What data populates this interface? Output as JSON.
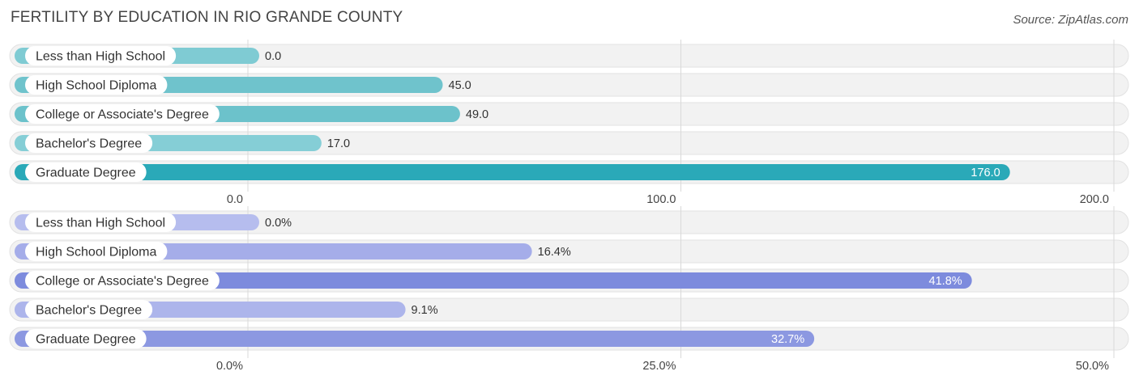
{
  "title": "FERTILITY BY EDUCATION IN RIO GRANDE COUNTY",
  "source": "Source: ZipAtlas.com",
  "chart_data": [
    {
      "type": "bar",
      "orientation": "horizontal",
      "categories": [
        "Less than High School",
        "High School Diploma",
        "College or Associate's Degree",
        "Bachelor's Degree",
        "Graduate Degree"
      ],
      "values": [
        0.0,
        45.0,
        49.0,
        17.0,
        176.0
      ],
      "value_labels": [
        "0.0",
        "45.0",
        "49.0",
        "17.0",
        "176.0"
      ],
      "xlim": [
        0,
        200
      ],
      "ticks": [
        0,
        100,
        200
      ],
      "tick_labels": [
        "0.0",
        "100.0",
        "200.0"
      ],
      "grid": true,
      "colors": [
        "#7fcbd3",
        "#6fc3cc",
        "#6cc2cb",
        "#85ced6",
        "#2aa9b8"
      ]
    },
    {
      "type": "bar",
      "orientation": "horizontal",
      "categories": [
        "Less than High School",
        "High School Diploma",
        "College or Associate's Degree",
        "Bachelor's Degree",
        "Graduate Degree"
      ],
      "values": [
        0.0,
        16.4,
        41.8,
        9.1,
        32.7
      ],
      "value_labels": [
        "0.0%",
        "16.4%",
        "41.8%",
        "9.1%",
        "32.7%"
      ],
      "xlim": [
        0,
        50
      ],
      "ticks": [
        0,
        25,
        50
      ],
      "tick_labels": [
        "0.0%",
        "25.0%",
        "50.0%"
      ],
      "grid": true,
      "colors": [
        "#b6bdee",
        "#a5ade9",
        "#7d8bdd",
        "#adb5eb",
        "#8c98e1"
      ]
    }
  ]
}
